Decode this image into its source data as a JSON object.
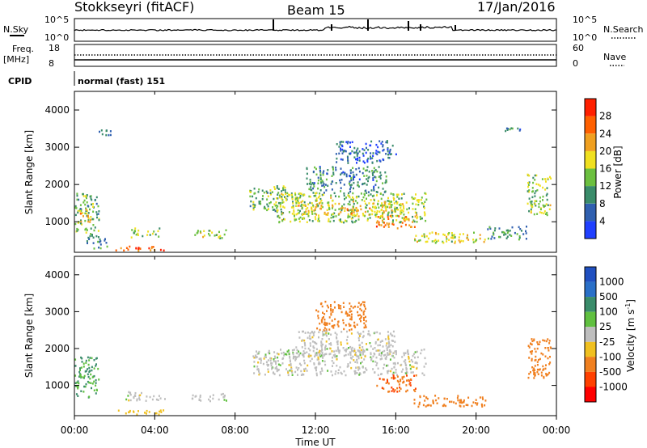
{
  "header": {
    "site": "Stokkseyri (fitACF)",
    "beam": "Beam 15",
    "date": "17/Jan/2016"
  },
  "panels": {
    "nsky": {
      "left_label": "N.Sky",
      "left_ticks": [
        "10^5",
        "10^0"
      ],
      "right_label": "N.Search",
      "right_ticks": [
        "10^5",
        "10^0"
      ]
    },
    "freq": {
      "left_label": "Freq.",
      "left_unit": "[MHz]",
      "left_ticks": [
        "18",
        "8"
      ],
      "right_label": "Nave",
      "right_ticks": [
        "60",
        "0"
      ]
    },
    "cpid": {
      "label": "CPID",
      "value": "normal (fast) 151"
    }
  },
  "colors": {
    "power": [
      "#2040ff",
      "#3060b0",
      "#3a8c6a",
      "#6cc040",
      "#f0e020",
      "#f0a020",
      "#ff6000",
      "#ff2000"
    ],
    "velocity": [
      "#2050c0",
      "#2a70c8",
      "#3a8c6a",
      "#60c040",
      "#bebebe",
      "#f0c020",
      "#f08020",
      "#ff4000",
      "#ff0000"
    ],
    "grey": "#c0c0c0"
  },
  "chart_data": [
    {
      "type": "heatmap",
      "title": "Power",
      "ylabel": "Slant Range [km]",
      "ylim": [
        180,
        4500
      ],
      "yticks": [
        1000,
        2000,
        3000,
        4000
      ],
      "colorbar": {
        "label": "Power [dB]",
        "ticks": [
          "4",
          "8",
          "12",
          "16",
          "20",
          "24",
          "28"
        ],
        "range": [
          0,
          30
        ]
      },
      "regions": [
        {
          "t": [
            0.0,
            1.2
          ],
          "r": [
            700,
            1800
          ],
          "level": 12
        },
        {
          "t": [
            0.2,
            0.8
          ],
          "r": [
            1000,
            1400
          ],
          "level": 20
        },
        {
          "t": [
            0.6,
            1.6
          ],
          "r": [
            300,
            700
          ],
          "level": 10
        },
        {
          "t": [
            2.0,
            4.5
          ],
          "r": [
            230,
            360
          ],
          "level": 24
        },
        {
          "t": [
            2.8,
            4.2
          ],
          "r": [
            600,
            850
          ],
          "level": 14
        },
        {
          "t": [
            5.8,
            7.6
          ],
          "r": [
            580,
            800
          ],
          "level": 15
        },
        {
          "t": [
            8.7,
            10.5
          ],
          "r": [
            1300,
            2000
          ],
          "level": 12
        },
        {
          "t": [
            10.0,
            17.5
          ],
          "r": [
            1000,
            1800
          ],
          "level": 14
        },
        {
          "t": [
            11.0,
            16.5
          ],
          "r": [
            1200,
            1600
          ],
          "level": 18
        },
        {
          "t": [
            15.0,
            17.0
          ],
          "r": [
            850,
            1200
          ],
          "level": 22
        },
        {
          "t": [
            16.8,
            20.5
          ],
          "r": [
            450,
            750
          ],
          "level": 16
        },
        {
          "t": [
            20.5,
            22.5
          ],
          "r": [
            550,
            900
          ],
          "level": 10
        },
        {
          "t": [
            22.5,
            23.7
          ],
          "r": [
            1200,
            2300
          ],
          "level": 14
        },
        {
          "t": [
            11.5,
            15.5
          ],
          "r": [
            1800,
            2500
          ],
          "level": 8
        },
        {
          "t": [
            13.0,
            16.0
          ],
          "r": [
            2600,
            3200
          ],
          "level": 6
        },
        {
          "t": [
            1.2,
            1.8
          ],
          "r": [
            3350,
            3500
          ],
          "level": 8
        },
        {
          "t": [
            21.3,
            22.3
          ],
          "r": [
            3450,
            3550
          ],
          "level": 8
        }
      ]
    },
    {
      "type": "heatmap",
      "title": "Velocity",
      "ylabel": "Slant Range [km]",
      "ylim": [
        180,
        4500
      ],
      "yticks": [
        1000,
        2000,
        3000,
        4000
      ],
      "colorbar": {
        "label": "Velocity [m s^-1]",
        "ticks": [
          "1000",
          "500",
          "100",
          "25",
          "-25",
          "-100",
          "-500",
          "-1000"
        ]
      },
      "regions": [
        {
          "t": [
            0.0,
            1.2
          ],
          "r": [
            700,
            1800
          ],
          "v": 100
        },
        {
          "t": [
            2.5,
            4.5
          ],
          "r": [
            600,
            850
          ],
          "v": 0
        },
        {
          "t": [
            2.0,
            4.5
          ],
          "r": [
            230,
            360
          ],
          "v": -60
        },
        {
          "t": [
            5.8,
            7.6
          ],
          "r": [
            600,
            800
          ],
          "v": 0
        },
        {
          "t": [
            8.7,
            17.5
          ],
          "r": [
            1300,
            2000
          ],
          "v": 0
        },
        {
          "t": [
            11.0,
            16.0
          ],
          "r": [
            1800,
            2500
          ],
          "v": 0
        },
        {
          "t": [
            15.0,
            17.0
          ],
          "r": [
            850,
            1300
          ],
          "v": -500
        },
        {
          "t": [
            16.8,
            20.5
          ],
          "r": [
            450,
            750
          ],
          "v": -150
        },
        {
          "t": [
            22.5,
            23.7
          ],
          "r": [
            1200,
            2300
          ],
          "v": -150
        },
        {
          "t": [
            12.0,
            14.5
          ],
          "r": [
            2500,
            3300
          ],
          "v": -200
        }
      ]
    }
  ],
  "xaxis": {
    "label": "Time UT",
    "ticks": [
      "00:00",
      "04:00",
      "08:00",
      "12:00",
      "16:00",
      "20:00",
      "00:00"
    ],
    "range_hours": [
      0,
      24
    ]
  }
}
